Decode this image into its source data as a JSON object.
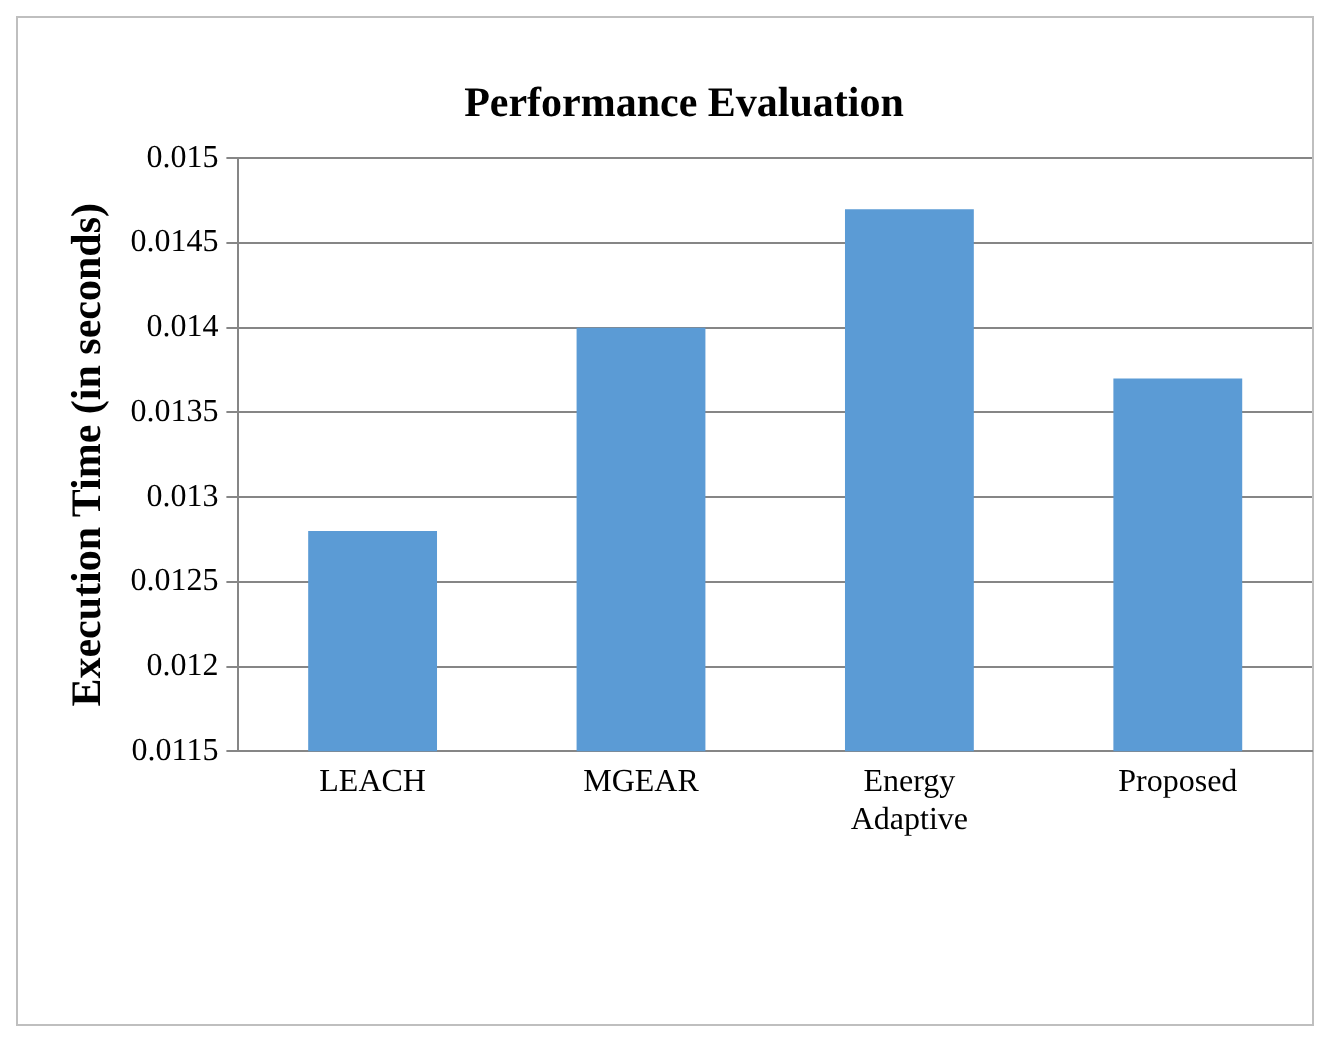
{
  "chart_data": {
    "type": "bar",
    "title": "Performance Evaluation",
    "ylabel": "Execution Time (in seconds)",
    "categories": [
      "LEACH",
      "MGEAR",
      "Energy Adaptive",
      "Proposed"
    ],
    "values": [
      0.0128,
      0.014,
      0.0147,
      0.0137
    ],
    "color": "#5b9bd5",
    "ylim": [
      0.0115,
      0.015
    ],
    "yticks": [
      0.0115,
      0.012,
      0.0125,
      0.013,
      0.0135,
      0.014,
      0.0145,
      0.015
    ],
    "grid": "y"
  }
}
